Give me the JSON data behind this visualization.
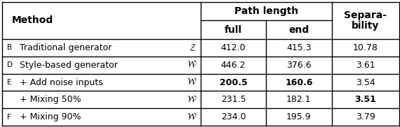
{
  "rows": [
    {
      "label": "B",
      "method": "Traditional generator",
      "space": "Z",
      "full": "412.0",
      "end": "415.3",
      "sep": "10.78",
      "bold_full": false,
      "bold_end": false,
      "bold_sep": false
    },
    {
      "label": "D",
      "method": "Style-based generator",
      "space": "W",
      "full": "446.2",
      "end": "376.6",
      "sep": "3.61",
      "bold_full": false,
      "bold_end": false,
      "bold_sep": false
    },
    {
      "label": "E",
      "method": "+ Add noise inputs",
      "space": "W",
      "full": "200.5",
      "end": "160.6",
      "sep": "3.54",
      "bold_full": true,
      "bold_end": true,
      "bold_sep": false
    },
    {
      "label": "",
      "method": "+ Mixing 50%",
      "space": "W",
      "full": "231.5",
      "end": "182.1",
      "sep": "3.51",
      "bold_full": false,
      "bold_end": false,
      "bold_sep": true
    },
    {
      "label": "F",
      "method": "+ Mixing 90%",
      "space": "W",
      "full": "234.0",
      "end": "195.9",
      "sep": "3.79",
      "bold_full": false,
      "bold_end": false,
      "bold_sep": false
    }
  ],
  "bg_color": "#ffffff",
  "figwidth": 5.7,
  "figheight": 1.82,
  "dpi": 100
}
